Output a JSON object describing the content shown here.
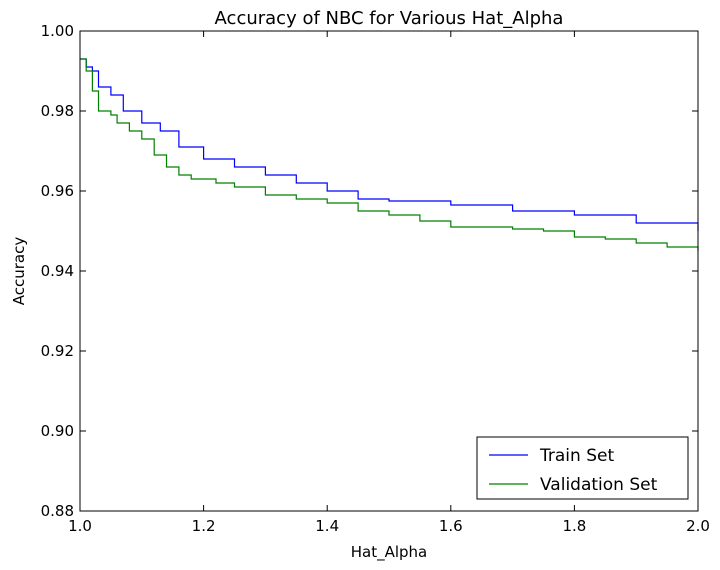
{
  "chart_data": {
    "type": "line",
    "title": "Accuracy of NBC for Various Hat_Alpha",
    "xlabel": "Hat_Alpha",
    "ylabel": "Accuracy",
    "xlim": [
      1.0,
      2.0
    ],
    "ylim": [
      0.88,
      1.0
    ],
    "xticks": [
      "1.0",
      "1.2",
      "1.4",
      "1.6",
      "1.8",
      "2.0"
    ],
    "yticks": [
      "0.88",
      "0.90",
      "0.92",
      "0.94",
      "0.96",
      "0.98",
      "1.00"
    ],
    "grid": false,
    "legend_position": "bottom-right",
    "series": [
      {
        "name": "Train Set",
        "color": "#0000ff",
        "x": [
          1.0,
          1.01,
          1.02,
          1.03,
          1.05,
          1.07,
          1.1,
          1.13,
          1.16,
          1.2,
          1.25,
          1.3,
          1.35,
          1.4,
          1.45,
          1.5,
          1.6,
          1.7,
          1.8,
          1.9,
          2.0
        ],
        "y": [
          0.993,
          0.991,
          0.99,
          0.986,
          0.984,
          0.98,
          0.977,
          0.975,
          0.971,
          0.968,
          0.966,
          0.964,
          0.962,
          0.96,
          0.958,
          0.9575,
          0.9565,
          0.955,
          0.954,
          0.952,
          0.95
        ]
      },
      {
        "name": "Validation Set",
        "color": "#008000",
        "x": [
          1.0,
          1.01,
          1.02,
          1.03,
          1.05,
          1.06,
          1.08,
          1.1,
          1.12,
          1.14,
          1.16,
          1.18,
          1.22,
          1.25,
          1.3,
          1.35,
          1.4,
          1.45,
          1.5,
          1.55,
          1.6,
          1.7,
          1.75,
          1.8,
          1.85,
          1.9,
          1.95,
          2.0
        ],
        "y": [
          0.993,
          0.99,
          0.985,
          0.98,
          0.979,
          0.977,
          0.975,
          0.973,
          0.969,
          0.966,
          0.964,
          0.963,
          0.962,
          0.961,
          0.959,
          0.958,
          0.957,
          0.955,
          0.954,
          0.9525,
          0.951,
          0.9505,
          0.95,
          0.9485,
          0.948,
          0.947,
          0.946,
          0.945
        ]
      }
    ]
  }
}
